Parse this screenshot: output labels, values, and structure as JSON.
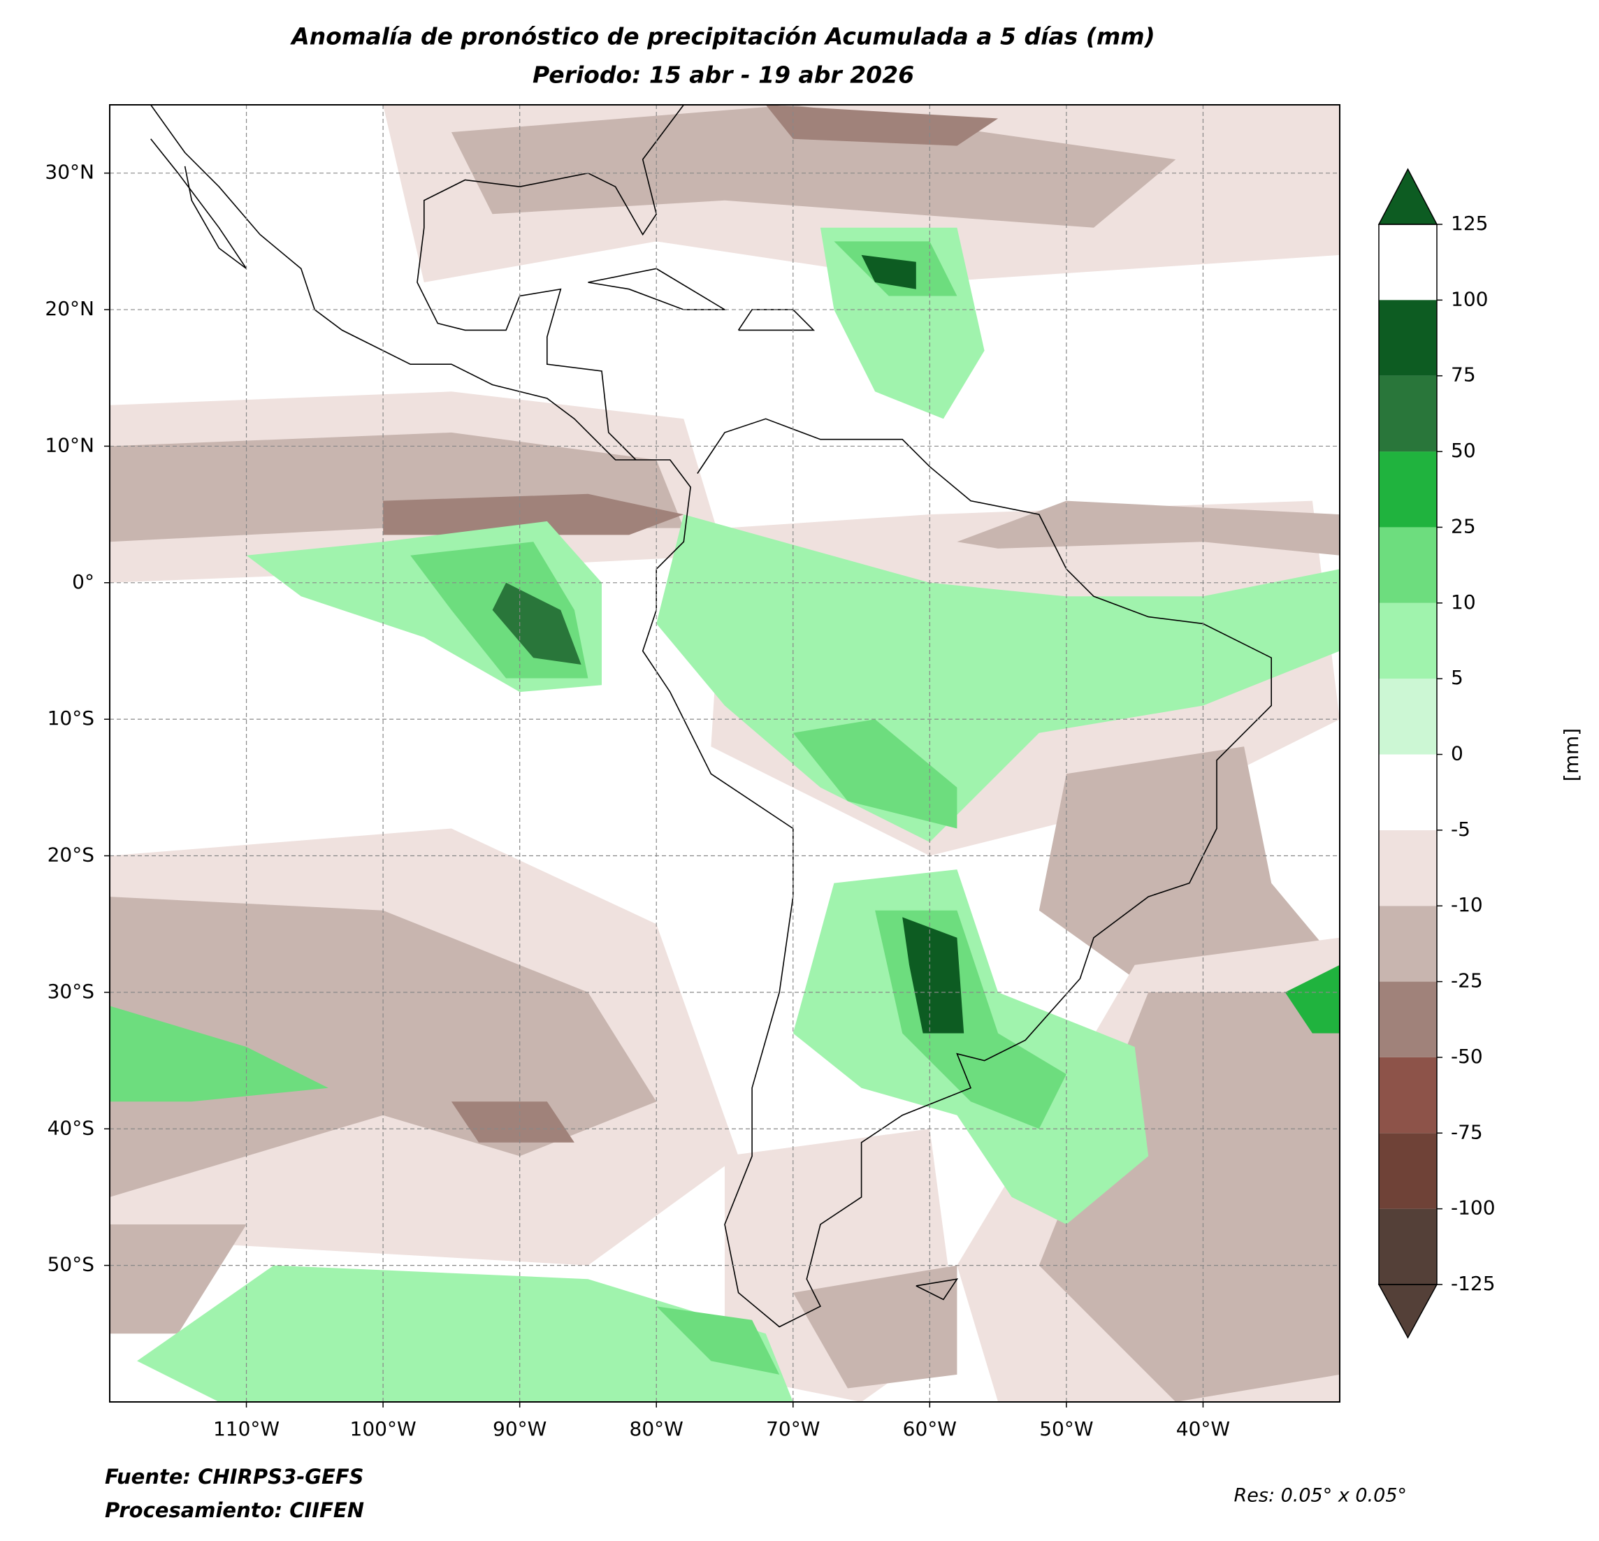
{
  "title": "Anomalía de pronóstico de precipitación Acumulada a 5 días (mm)",
  "subtitle": "Periodo: 15 abr - 19 abr 2026",
  "map": {
    "xlim": [
      -120,
      -30
    ],
    "ylim": [
      -60,
      35
    ],
    "xticks": [
      {
        "value": -110,
        "label": "110°W"
      },
      {
        "value": -100,
        "label": "100°W"
      },
      {
        "value": -90,
        "label": "90°W"
      },
      {
        "value": -80,
        "label": "80°W"
      },
      {
        "value": -70,
        "label": "70°W"
      },
      {
        "value": -60,
        "label": "60°W"
      },
      {
        "value": -50,
        "label": "50°W"
      },
      {
        "value": -40,
        "label": "40°W"
      }
    ],
    "yticks": [
      {
        "value": 30,
        "label": "30°N"
      },
      {
        "value": 20,
        "label": "20°N"
      },
      {
        "value": 10,
        "label": "10°N"
      },
      {
        "value": 0,
        "label": "0°"
      },
      {
        "value": -10,
        "label": "10°S"
      },
      {
        "value": -20,
        "label": "20°S"
      },
      {
        "value": -30,
        "label": "30°S"
      },
      {
        "value": -40,
        "label": "40°S"
      },
      {
        "value": -50,
        "label": "50°S"
      }
    ],
    "grid": true
  },
  "colorbar": {
    "label": "[mm]",
    "ticks": [
      -125,
      -100,
      -75,
      -50,
      -25,
      -10,
      -5,
      0,
      5,
      10,
      25,
      50,
      75,
      100,
      125
    ],
    "colors": [
      "#544038",
      "#6f4237",
      "#8d5349",
      "#a0827a",
      "#c8b5af",
      "#efe1de",
      "#ffffff",
      "#ccf7d4",
      "#a0f3ad",
      "#6ddd7e",
      "#20b33e",
      "#29763a",
      "#0d5c22"
    ],
    "extend": "both"
  },
  "footer": {
    "source": "Fuente: CHIRPS3-GEFS",
    "processing": "Procesamiento: CIIFEN",
    "resolution": "Res: 0.05° x 0.05°"
  }
}
